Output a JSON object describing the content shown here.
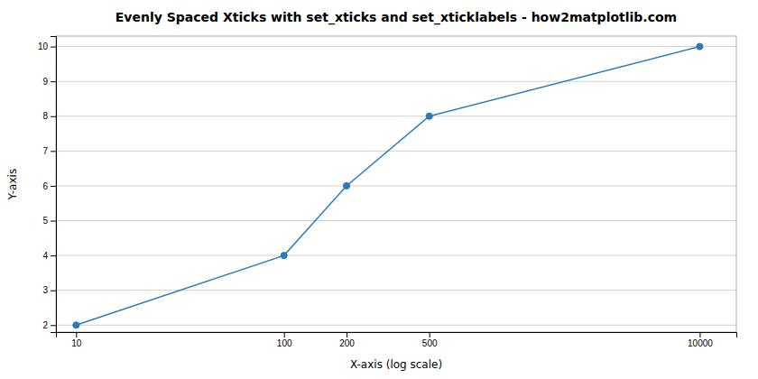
{
  "chart_data": {
    "type": "line",
    "title": "Evenly Spaced Xticks with set_xticks and set_xticklabels - how2matplotlib.com",
    "x_label": "X-axis (log scale)",
    "y_label": "Y-axis",
    "x": [
      10,
      100,
      200,
      500,
      10000
    ],
    "values": [
      2,
      4,
      6,
      8,
      10
    ],
    "color": "#2b7bba",
    "marker": "circle",
    "log": "x",
    "xlim": [
      8,
      15000
    ],
    "xticks": [
      10,
      100,
      200,
      500,
      10000
    ],
    "ylim": [
      1.8,
      10.3
    ],
    "yticks": [
      2,
      3,
      4,
      5,
      6,
      7,
      8,
      9,
      10
    ],
    "grid": true
  }
}
